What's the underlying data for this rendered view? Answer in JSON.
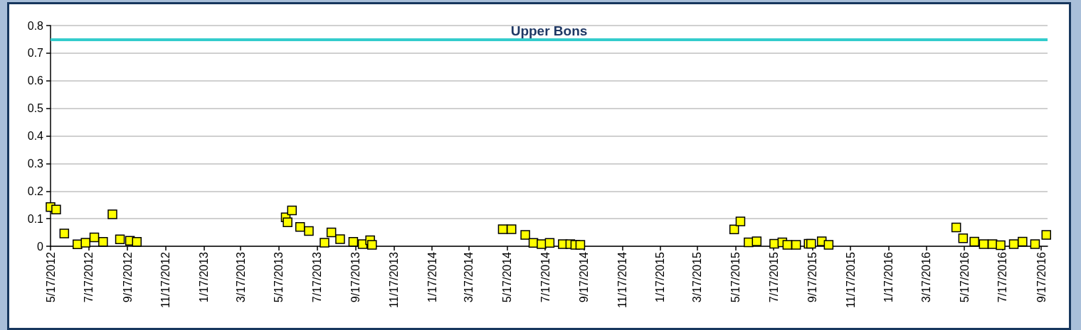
{
  "chart_data": {
    "type": "scatter",
    "color": "#ffff00",
    "marker": "square",
    "grid": "y",
    "x": [
      "2012-05-17",
      "2012-05-26",
      "2012-06-08",
      "2012-06-29",
      "2012-07-12",
      "2012-07-26",
      "2012-08-09",
      "2012-08-24",
      "2012-09-05",
      "2012-09-21",
      "2012-10-02",
      "2013-05-28",
      "2013-05-31",
      "2013-06-07",
      "2013-06-20",
      "2013-07-04",
      "2013-07-29",
      "2013-08-09",
      "2013-08-23",
      "2013-09-13",
      "2013-09-28",
      "2013-10-10",
      "2013-10-13",
      "2014-05-10",
      "2014-05-24",
      "2014-06-15",
      "2014-06-28",
      "2014-07-11",
      "2014-07-24",
      "2014-08-14",
      "2014-08-26",
      "2014-09-03",
      "2014-09-11",
      "2015-05-15",
      "2015-05-25",
      "2015-06-07",
      "2015-06-20",
      "2015-07-18",
      "2015-07-31",
      "2015-08-08",
      "2015-08-22",
      "2015-09-11",
      "2015-09-15",
      "2015-10-02",
      "2015-10-13",
      "2016-05-04",
      "2016-05-15",
      "2016-06-02",
      "2016-06-17",
      "2016-07-01",
      "2016-07-14",
      "2016-08-04",
      "2016-08-18",
      "2016-09-07",
      "2016-09-25"
    ],
    "values": [
      0.142,
      0.133,
      0.046,
      0.007,
      0.013,
      0.032,
      0.016,
      0.116,
      0.025,
      0.02,
      0.016,
      0.105,
      0.087,
      0.13,
      0.07,
      0.055,
      0.013,
      0.05,
      0.026,
      0.016,
      0.008,
      0.022,
      0.005,
      0.062,
      0.062,
      0.041,
      0.012,
      0.008,
      0.012,
      0.008,
      0.008,
      0.005,
      0.005,
      0.061,
      0.09,
      0.014,
      0.018,
      0.009,
      0.014,
      0.005,
      0.005,
      0.009,
      0.009,
      0.018,
      0.005,
      0.068,
      0.029,
      0.017,
      0.008,
      0.008,
      0.004,
      0.008,
      0.017,
      0.008,
      0.041
    ],
    "xlim": [
      "2012-05-17",
      "2016-09-27"
    ],
    "xticks": [
      {
        "value": "2012-05-17",
        "label": "5/17/2012"
      },
      {
        "value": "2012-07-17",
        "label": "7/17/2012"
      },
      {
        "value": "2012-09-17",
        "label": "9/17/2012"
      },
      {
        "value": "2012-11-17",
        "label": "11/17/2012"
      },
      {
        "value": "2013-01-17",
        "label": "1/17/2013"
      },
      {
        "value": "2013-03-17",
        "label": "3/17/2013"
      },
      {
        "value": "2013-05-17",
        "label": "5/17/2013"
      },
      {
        "value": "2013-07-17",
        "label": "7/17/2013"
      },
      {
        "value": "2013-09-17",
        "label": "9/17/2013"
      },
      {
        "value": "2013-11-17",
        "label": "11/17/2013"
      },
      {
        "value": "2014-01-17",
        "label": "1/17/2014"
      },
      {
        "value": "2014-03-17",
        "label": "3/17/2014"
      },
      {
        "value": "2014-05-17",
        "label": "5/17/2014"
      },
      {
        "value": "2014-07-17",
        "label": "7/17/2014"
      },
      {
        "value": "2014-09-17",
        "label": "9/17/2014"
      },
      {
        "value": "2014-11-17",
        "label": "11/17/2014"
      },
      {
        "value": "2015-01-17",
        "label": "1/17/2015"
      },
      {
        "value": "2015-03-17",
        "label": "3/17/2015"
      },
      {
        "value": "2015-05-17",
        "label": "5/17/2015"
      },
      {
        "value": "2015-07-17",
        "label": "7/17/2015"
      },
      {
        "value": "2015-09-17",
        "label": "9/17/2015"
      },
      {
        "value": "2015-11-17",
        "label": "11/17/2015"
      },
      {
        "value": "2016-01-17",
        "label": "1/17/2016"
      },
      {
        "value": "2016-03-17",
        "label": "3/17/2016"
      },
      {
        "value": "2016-05-17",
        "label": "5/17/2016"
      },
      {
        "value": "2016-07-17",
        "label": "7/17/2016"
      },
      {
        "value": "2016-09-17",
        "label": "9/17/2016"
      }
    ],
    "ylim": [
      0,
      0.8
    ],
    "yticks": [
      0,
      0.1,
      0.2,
      0.3,
      0.4,
      0.5,
      0.6,
      0.7,
      0.8
    ],
    "ref_lines": [
      {
        "axis": "y",
        "value": 0.75,
        "label": "Upper Bons",
        "color": "#33cccc"
      }
    ]
  }
}
